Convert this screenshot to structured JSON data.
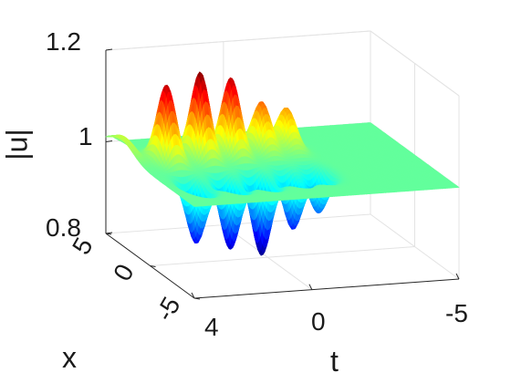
{
  "chart_data": {
    "type": "surface",
    "title": "",
    "xlabel": "x",
    "tlabel": "t",
    "zlabel": "|u|",
    "x_ticks": [
      "5",
      "0",
      "-5"
    ],
    "x_range": [
      -5,
      5
    ],
    "t_ticks": [
      "4",
      "0",
      "-5"
    ],
    "t_range": [
      -5,
      4
    ],
    "z_ticks": [
      "0.8",
      "1",
      "1.2"
    ],
    "z_range": [
      0.8,
      1.2
    ],
    "background_level": 1.0,
    "peaks": [
      {
        "t": 3.0,
        "max": 1.17,
        "min": 0.87
      },
      {
        "t": 1.8,
        "max": 1.19,
        "min": 0.85
      },
      {
        "t": 0.7,
        "max": 1.17,
        "min": 0.83
      },
      {
        "t": -0.4,
        "max": 1.11,
        "min": 0.88
      },
      {
        "t": -1.3,
        "max": 1.09,
        "min": 0.91
      }
    ],
    "colormap": "jet",
    "grid": true
  }
}
